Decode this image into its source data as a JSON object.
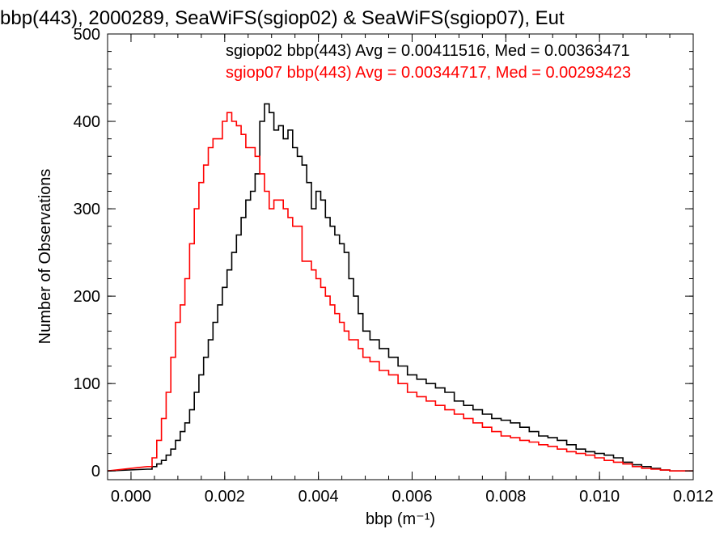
{
  "chart_data": {
    "type": "line",
    "title": "bbp(443), 2000289, SeaWiFS(sgiop02) & SeaWiFS(sgiop07), Eut",
    "xlabel": "bbp (m⁻¹)",
    "ylabel": "Number of Observations",
    "xlim": [
      -0.0005,
      0.012
    ],
    "ylim": [
      -10,
      500
    ],
    "xticks": [
      0.0,
      0.002,
      0.004,
      0.006,
      0.008,
      0.01,
      0.012
    ],
    "xtick_labels": [
      "0.000",
      "0.002",
      "0.004",
      "0.006",
      "0.008",
      "0.010",
      "0.012"
    ],
    "yticks": [
      0,
      100,
      200,
      300,
      400,
      500
    ],
    "ytick_labels": [
      "0",
      "100",
      "200",
      "300",
      "400",
      "500"
    ],
    "grid": false,
    "legend_position": "top-right",
    "series": [
      {
        "name": "sgiop02 bbp(443) Avg = 0.00411516, Med = 0.00363471",
        "color": "#000000",
        "x": [
          0.0004,
          0.0005,
          0.0006,
          0.0007,
          0.0008,
          0.0009,
          0.001,
          0.0011,
          0.0012,
          0.0013,
          0.0014,
          0.0015,
          0.0016,
          0.0017,
          0.0018,
          0.0019,
          0.002,
          0.0021,
          0.0022,
          0.0023,
          0.0024,
          0.0025,
          0.0026,
          0.0027,
          0.0028,
          0.0029,
          0.003,
          0.0031,
          0.0032,
          0.0033,
          0.0034,
          0.0035,
          0.0036,
          0.0037,
          0.0038,
          0.0039,
          0.004,
          0.0041,
          0.0042,
          0.0043,
          0.0044,
          0.0045,
          0.0046,
          0.0047,
          0.0048,
          0.0049,
          0.005,
          0.0052,
          0.0054,
          0.0056,
          0.0058,
          0.006,
          0.0062,
          0.0064,
          0.0066,
          0.0068,
          0.007,
          0.0072,
          0.0074,
          0.0076,
          0.0078,
          0.008,
          0.0082,
          0.0084,
          0.0086,
          0.0088,
          0.009,
          0.0092,
          0.0094,
          0.0096,
          0.0098,
          0.01,
          0.0102,
          0.0104,
          0.0106,
          0.0108,
          0.011,
          0.0112,
          0.0114,
          0.0116
        ],
        "y": [
          2,
          5,
          8,
          12,
          18,
          25,
          35,
          45,
          55,
          70,
          90,
          110,
          130,
          150,
          170,
          190,
          210,
          230,
          250,
          270,
          290,
          310,
          320,
          340,
          400,
          420,
          410,
          390,
          395,
          380,
          390,
          370,
          360,
          350,
          330,
          300,
          320,
          310,
          290,
          280,
          270,
          260,
          250,
          220,
          200,
          180,
          160,
          150,
          140,
          130,
          120,
          110,
          105,
          100,
          95,
          90,
          80,
          75,
          70,
          65,
          60,
          58,
          55,
          50,
          45,
          40,
          38,
          35,
          30,
          25,
          22,
          20,
          18,
          15,
          10,
          7,
          5,
          3,
          1,
          0
        ]
      },
      {
        "name": "sgiop07 bbp(443) Avg = 0.00344717, Med = 0.00293423",
        "color": "#ff0000",
        "x": [
          0.0004,
          0.0005,
          0.0006,
          0.0007,
          0.0008,
          0.0009,
          0.001,
          0.0011,
          0.0012,
          0.0013,
          0.0014,
          0.0015,
          0.0016,
          0.0017,
          0.0018,
          0.0019,
          0.002,
          0.0021,
          0.0022,
          0.0023,
          0.0024,
          0.0025,
          0.0026,
          0.0027,
          0.0028,
          0.0029,
          0.003,
          0.0031,
          0.0032,
          0.0033,
          0.0034,
          0.0035,
          0.0036,
          0.0037,
          0.0038,
          0.0039,
          0.004,
          0.0041,
          0.0042,
          0.0043,
          0.0044,
          0.0045,
          0.0046,
          0.0047,
          0.0048,
          0.0049,
          0.005,
          0.0052,
          0.0054,
          0.0056,
          0.0058,
          0.006,
          0.0062,
          0.0064,
          0.0066,
          0.0068,
          0.007,
          0.0072,
          0.0074,
          0.0076,
          0.0078,
          0.008,
          0.0082,
          0.0084,
          0.0086,
          0.0088,
          0.009,
          0.0092,
          0.0094,
          0.0096,
          0.0098,
          0.01,
          0.0102,
          0.0104,
          0.0106,
          0.0108,
          0.011,
          0.0112,
          0.0114,
          0.0116
        ],
        "y": [
          5,
          15,
          35,
          60,
          90,
          130,
          170,
          190,
          220,
          260,
          300,
          330,
          350,
          370,
          380,
          380,
          400,
          410,
          400,
          395,
          385,
          370,
          370,
          360,
          340,
          320,
          300,
          310,
          310,
          300,
          290,
          280,
          280,
          240,
          240,
          230,
          220,
          210,
          200,
          190,
          180,
          170,
          160,
          150,
          150,
          140,
          130,
          125,
          115,
          110,
          100,
          90,
          85,
          80,
          75,
          70,
          65,
          60,
          55,
          50,
          45,
          40,
          38,
          35,
          33,
          30,
          28,
          25,
          22,
          20,
          18,
          15,
          12,
          10,
          8,
          5,
          3,
          2,
          1,
          0
        ]
      }
    ]
  }
}
